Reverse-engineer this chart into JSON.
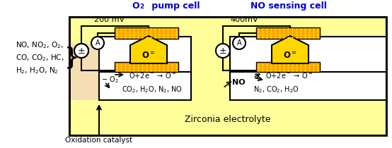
{
  "bg_color": "#FFFFC0",
  "yellow_fill": "#FFD700",
  "yellow_light": "#FFFF99",
  "black": "#000000",
  "white": "#FFFFFF",
  "blue_title": "#0000CC",
  "orange_electrode": "#FFA500",
  "catalyst_color": "#F5DEB3",
  "title_o2_pre": "O",
  "title_o2_sub": "2",
  "title_o2_post": " pump cell",
  "title_no": "NO sensing cell",
  "voltage_left": "200 mV",
  "voltage_right": "400mV",
  "species_line1": "NO, NO",
  "species_line1_sub": "2",
  "species_line1_post": ", O",
  "species_line1_sub2": "2",
  "species_line1_post2": ",",
  "zirconia_label": "Zirconia electrolyte",
  "oxidation_label": "Oxidation catalyst"
}
